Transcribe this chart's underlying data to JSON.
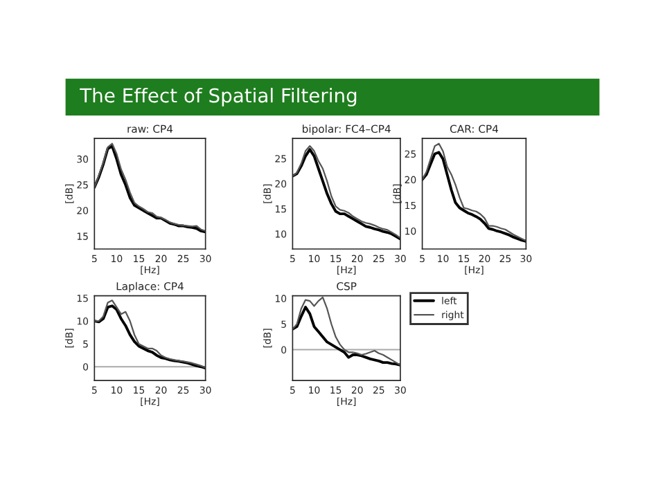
{
  "chart_data": [
    {
      "type": "line",
      "title": "raw: CP4",
      "xlabel": "[Hz]",
      "ylabel": "[dB]",
      "annotations": [
        "The Effect of Spatial Filtering"
      ],
      "xlim": [
        5,
        30
      ],
      "xticks": [
        5,
        10,
        15,
        20,
        25,
        30
      ],
      "ylim": [
        12.5,
        34
      ],
      "yticks": [
        15,
        20,
        25,
        30
      ],
      "x": [
        5,
        6,
        7,
        8,
        9,
        10,
        11,
        12,
        13,
        14,
        15,
        16,
        17,
        18,
        19,
        20,
        21,
        22,
        23,
        24,
        25,
        26,
        27,
        28,
        29,
        30
      ],
      "series": [
        {
          "color": "#000000",
          "values": [
            24.5,
            26.5,
            29,
            32,
            32.5,
            30,
            27,
            25,
            22.5,
            21,
            20.5,
            20,
            19.5,
            19,
            18.5,
            18.5,
            18,
            17.5,
            17.3,
            17,
            17,
            16.8,
            16.7,
            16.5,
            16,
            15.8
          ]
        },
        {
          "color": "#555555",
          "values": [
            24.5,
            26.8,
            29.3,
            32.3,
            33,
            31,
            28,
            26,
            23.5,
            21.5,
            20.8,
            20.3,
            19.7,
            19.5,
            18.8,
            18.6,
            18.2,
            17.7,
            17.4,
            17.2,
            17.1,
            17,
            16.9,
            17,
            16.3,
            16
          ]
        }
      ]
    },
    {
      "type": "line",
      "title": "bipolar: FC4–CP4",
      "xlabel": "[Hz]",
      "ylabel": "[dB]",
      "xlim": [
        5,
        30
      ],
      "xticks": [
        5,
        10,
        15,
        20,
        25,
        30
      ],
      "ylim": [
        7,
        29
      ],
      "yticks": [
        10,
        15,
        20,
        25
      ],
      "x": [
        5,
        6,
        7,
        8,
        9,
        10,
        11,
        12,
        13,
        14,
        15,
        16,
        17,
        18,
        19,
        20,
        21,
        22,
        23,
        24,
        25,
        26,
        27,
        28,
        29,
        30
      ],
      "series": [
        {
          "color": "#000000",
          "values": [
            21.5,
            22,
            23.5,
            25.5,
            26.8,
            25.5,
            23,
            20.5,
            18,
            16,
            14.5,
            14,
            14,
            13.5,
            13,
            12.5,
            12,
            11.5,
            11.3,
            11,
            10.8,
            10.5,
            10.3,
            10,
            9.5,
            9
          ]
        },
        {
          "color": "#555555",
          "values": [
            21.5,
            22.2,
            24,
            26.5,
            27.5,
            26.5,
            24.5,
            23,
            20.5,
            17.5,
            15.5,
            14.8,
            14.6,
            14.2,
            13.5,
            13,
            12.5,
            12.2,
            12,
            11.7,
            11.3,
            11,
            10.8,
            10.3,
            9.8,
            9.2
          ]
        }
      ]
    },
    {
      "type": "line",
      "title": "CAR: CP4",
      "xlabel": "[Hz]",
      "ylabel": "[dB]",
      "xlim": [
        5,
        30
      ],
      "xticks": [
        5,
        10,
        15,
        20,
        25,
        30
      ],
      "ylim": [
        6.5,
        28
      ],
      "yticks": [
        10,
        15,
        20,
        25
      ],
      "x": [
        5,
        6,
        7,
        8,
        9,
        10,
        11,
        12,
        13,
        14,
        15,
        16,
        17,
        18,
        19,
        20,
        21,
        22,
        23,
        24,
        25,
        26,
        27,
        28,
        29,
        30
      ],
      "series": [
        {
          "color": "#000000",
          "values": [
            20,
            21,
            23,
            25,
            25.3,
            24,
            21,
            18,
            15.5,
            14.5,
            14,
            13.5,
            13.2,
            12.8,
            12.3,
            11.5,
            10.5,
            10.3,
            10,
            9.8,
            9.5,
            9.2,
            8.8,
            8.5,
            8.2,
            8
          ]
        },
        {
          "color": "#555555",
          "values": [
            20,
            21.5,
            24,
            26.5,
            27,
            25.5,
            22.5,
            21,
            19,
            16.5,
            14.5,
            14.3,
            14,
            13.8,
            13.3,
            12.5,
            11,
            11,
            10.8,
            10.5,
            10.3,
            9.8,
            9.3,
            8.9,
            8.5,
            8.1
          ]
        }
      ]
    },
    {
      "type": "line",
      "title": "Laplace: CP4",
      "xlabel": "[Hz]",
      "ylabel": "[dB]",
      "xlim": [
        5,
        30
      ],
      "xticks": [
        5,
        10,
        15,
        20,
        25,
        30
      ],
      "ylim": [
        -3,
        15.5
      ],
      "yticks": [
        0,
        5,
        10,
        15
      ],
      "ref_lines": [
        {
          "axis": "y",
          "value": 0,
          "color": "#aaaaaa"
        }
      ],
      "x": [
        5,
        6,
        7,
        8,
        9,
        10,
        11,
        12,
        13,
        14,
        15,
        16,
        17,
        18,
        19,
        20,
        21,
        22,
        23,
        24,
        25,
        26,
        27,
        28,
        29,
        30
      ],
      "series": [
        {
          "color": "#000000",
          "values": [
            10,
            9.8,
            10.5,
            13,
            13.3,
            12.5,
            10.5,
            9,
            7,
            5.5,
            4.5,
            4,
            3.5,
            3.2,
            2.5,
            2,
            1.8,
            1.5,
            1.3,
            1.2,
            1,
            0.8,
            0.5,
            0.2,
            0,
            -0.3
          ]
        },
        {
          "color": "#555555",
          "values": [
            10,
            10,
            11,
            14,
            14.5,
            13,
            11.5,
            12,
            10,
            7,
            5,
            4.5,
            4,
            4,
            3.5,
            2.5,
            2,
            1.7,
            1.5,
            1.3,
            1.2,
            1,
            0.8,
            0.5,
            0.2,
            -0.2
          ]
        }
      ]
    },
    {
      "type": "line",
      "title": "CSP",
      "xlabel": "[Hz]",
      "ylabel": "[dB]",
      "xlim": [
        5,
        30
      ],
      "xticks": [
        5,
        10,
        15,
        20,
        25,
        30
      ],
      "ylim": [
        -6,
        10.5
      ],
      "yticks": [
        0,
        5,
        10
      ],
      "legend": "right",
      "ref_lines": [
        {
          "axis": "y",
          "value": 0,
          "color": "#aaaaaa"
        }
      ],
      "x": [
        5,
        6,
        7,
        8,
        9,
        10,
        11,
        12,
        13,
        14,
        15,
        16,
        17,
        18,
        19,
        20,
        21,
        22,
        23,
        24,
        25,
        26,
        27,
        28,
        29,
        30
      ],
      "series": [
        {
          "name": "left",
          "color": "#000000",
          "values": [
            4,
            4.5,
            6.5,
            8.3,
            7,
            4.5,
            3.5,
            2.5,
            1.5,
            1,
            0.5,
            0,
            -0.5,
            -1.5,
            -1,
            -1,
            -1.2,
            -1.5,
            -1.8,
            -2,
            -2.2,
            -2.5,
            -2.5,
            -2.7,
            -2.8,
            -3
          ]
        },
        {
          "name": "right",
          "color": "#555555",
          "values": [
            4,
            5,
            8,
            9.7,
            9.5,
            8.5,
            9.5,
            10.2,
            8,
            5,
            2.5,
            1,
            0,
            -0.5,
            -0.5,
            -0.7,
            -1,
            -0.8,
            -0.5,
            -0.2,
            -0.7,
            -1,
            -1.5,
            -2,
            -2.5,
            -3
          ]
        }
      ]
    }
  ]
}
